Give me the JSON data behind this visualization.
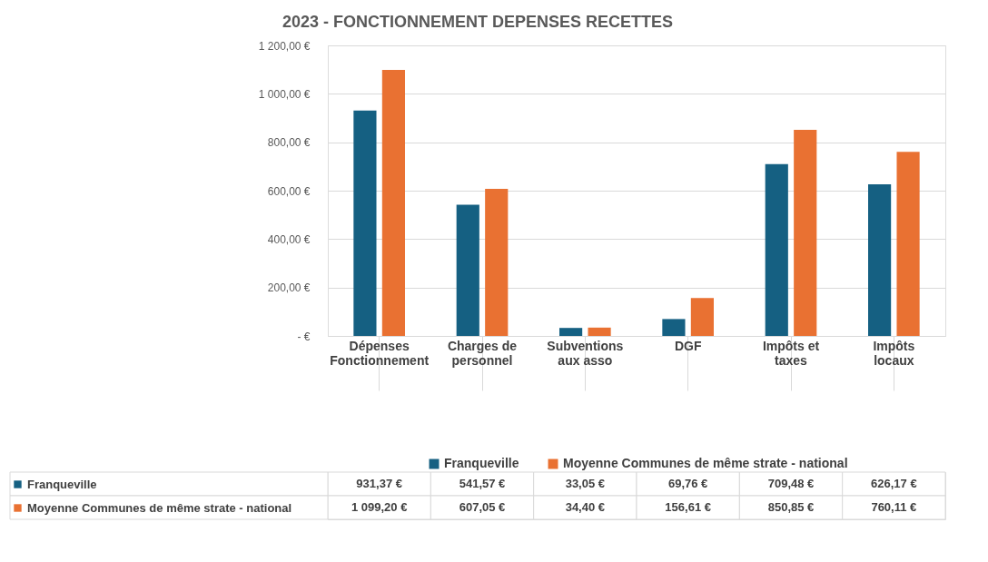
{
  "chart_data": {
    "type": "bar",
    "title": "2023 - FONCTIONNEMENT DEPENSES RECETTES",
    "categories": [
      "Dépenses Fonctionnement",
      "Charges de personnel",
      "Subventions aux asso",
      "DGF",
      "Impôts et taxes",
      "Impôts locaux"
    ],
    "series": [
      {
        "name": "Franqueville",
        "color": "#156082",
        "values": [
          931.37,
          541.57,
          33.05,
          69.76,
          709.48,
          626.17
        ],
        "value_labels": [
          "931,37 €",
          "541,57 €",
          "33,05 €",
          "69,76 €",
          "709,48 €",
          "626,17 €"
        ]
      },
      {
        "name": "Moyenne Communes de même strate - national",
        "color": "#e97132",
        "values": [
          1099.2,
          607.05,
          34.4,
          156.61,
          850.85,
          760.11
        ],
        "value_labels": [
          "1 099,20 €",
          "607,05 €",
          "34,40 €",
          "156,61 €",
          "850,85 €",
          "760,11 €"
        ]
      }
    ],
    "ylim": [
      0,
      1200
    ],
    "yticks": [
      {
        "value": 0,
        "label": "-   €"
      },
      {
        "value": 200,
        "label": "200,00 €"
      },
      {
        "value": 400,
        "label": "400,00 €"
      },
      {
        "value": 600,
        "label": "600,00 €"
      },
      {
        "value": 800,
        "label": "800,00 €"
      },
      {
        "value": 1000,
        "label": "1 000,00 €"
      },
      {
        "value": 1200,
        "label": "1 200,00 €"
      }
    ],
    "grid": "y",
    "legend": "bottom"
  }
}
